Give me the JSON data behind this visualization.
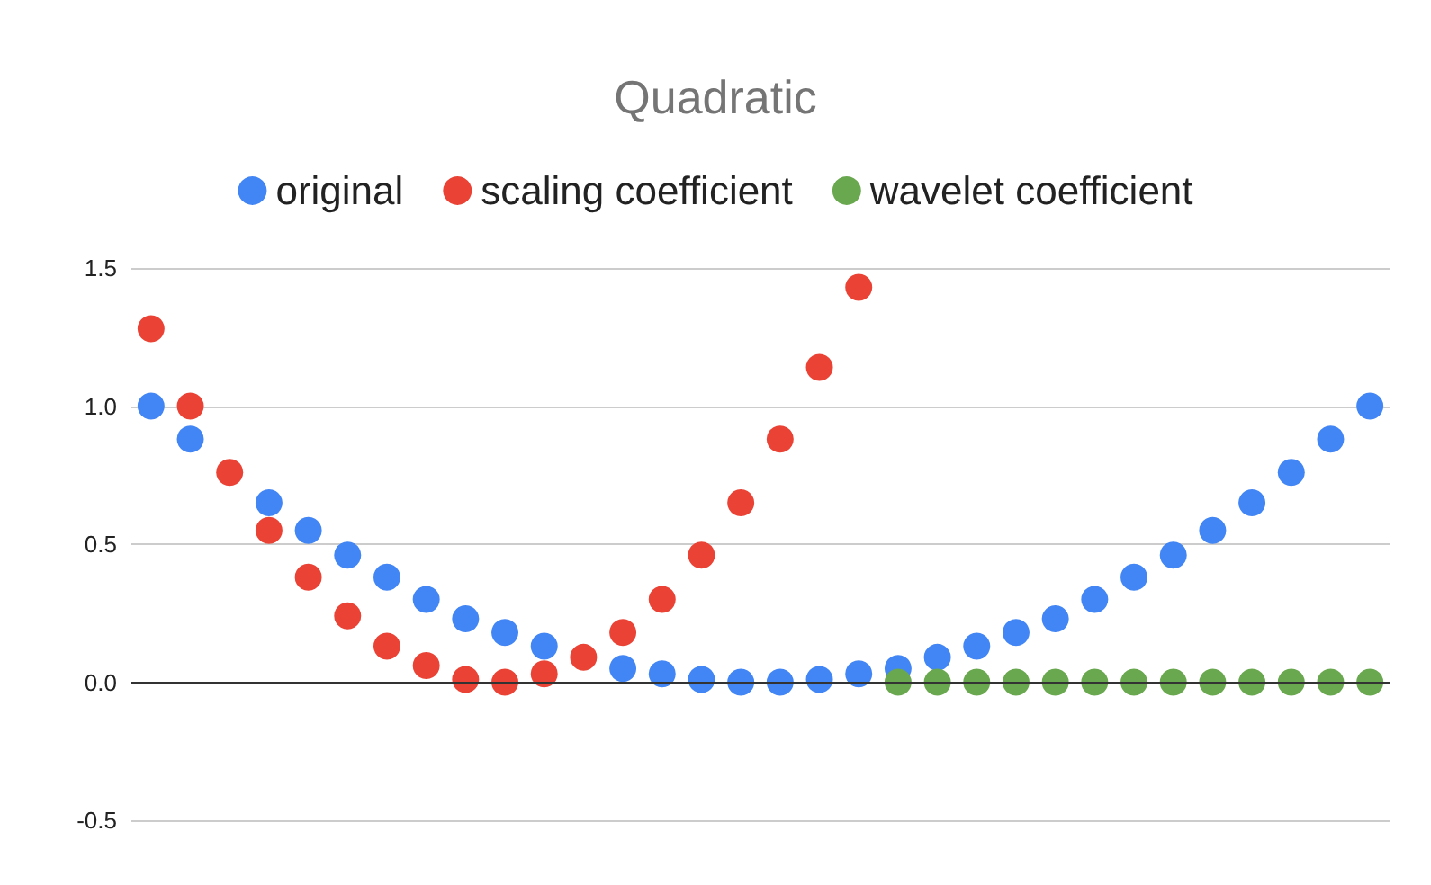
{
  "chart_data": {
    "type": "scatter",
    "title": "Quadratic",
    "categories": [
      null,
      null,
      null,
      null,
      null,
      null,
      null,
      null,
      null,
      null,
      null,
      null,
      null,
      null,
      null,
      null,
      null,
      null,
      null,
      null,
      null,
      null,
      null,
      null,
      null,
      null,
      null,
      null,
      null,
      null,
      null,
      null
    ],
    "series": [
      {
        "name": "original",
        "color": "#4285f4",
        "values": [
          1.0,
          0.88,
          null,
          0.65,
          0.55,
          0.46,
          0.38,
          0.3,
          0.23,
          0.18,
          0.13,
          null,
          0.05,
          0.03,
          0.01,
          0.0,
          0.0,
          0.01,
          0.03,
          0.05,
          0.09,
          0.13,
          0.18,
          0.23,
          0.3,
          0.38,
          0.46,
          0.55,
          0.65,
          0.76,
          0.88,
          1.0
        ]
      },
      {
        "name": "scaling coefficient",
        "color": "#ea4335",
        "values": [
          1.28,
          1.0,
          0.76,
          0.55,
          0.38,
          0.24,
          0.13,
          0.06,
          0.01,
          0.0,
          0.03,
          0.09,
          0.18,
          0.3,
          0.46,
          0.65,
          0.88,
          1.14,
          1.43,
          null,
          null,
          null,
          null,
          null,
          null,
          null,
          null,
          null,
          null,
          null,
          null,
          null
        ]
      },
      {
        "name": "wavelet coefficient",
        "color": "#6aa84f",
        "values": [
          null,
          null,
          null,
          null,
          null,
          null,
          null,
          null,
          null,
          null,
          null,
          null,
          null,
          null,
          null,
          null,
          null,
          null,
          null,
          0,
          0,
          0,
          0,
          0,
          0,
          0,
          0,
          0,
          0,
          0,
          0,
          0
        ]
      }
    ],
    "ylim": [
      -0.5,
      1.5
    ],
    "yticks": [
      -0.5,
      {
        "value": 0,
        "label": "0.0"
      },
      0.5,
      {
        "value": 1,
        "label": "1.0"
      },
      1.5
    ],
    "grid": "y",
    "legend": "top",
    "marker": "circle"
  }
}
